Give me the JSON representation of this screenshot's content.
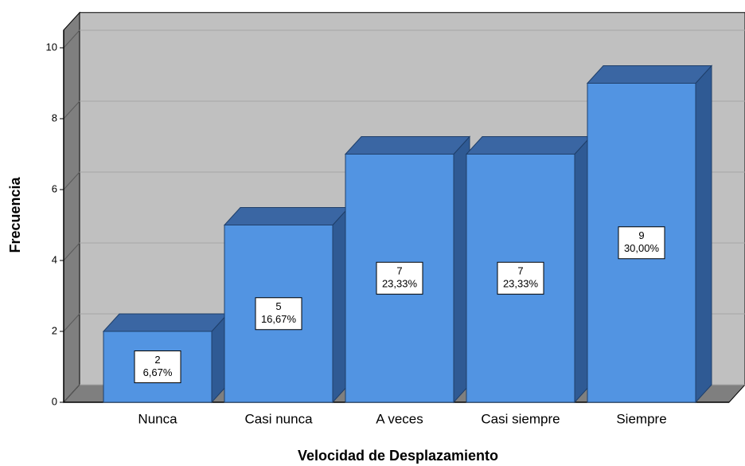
{
  "chart_data": {
    "type": "bar3d",
    "x_label": "Velocidad de Desplazamiento",
    "y_label": "Frecuencia",
    "categories": [
      "Nunca",
      "Casi nunca",
      "A veces",
      "Casi siempre",
      "Siempre"
    ],
    "values": [
      2,
      5,
      7,
      7,
      9
    ],
    "percent": {
      "values": [
        6.67,
        16.67,
        23.33,
        23.33,
        30.0
      ],
      "value_labels": [
        "6,67%",
        "16,67%",
        "23,33%",
        "23,33%",
        "30,00%"
      ]
    },
    "color": "#5294e2",
    "ylim": [
      0,
      10.5
    ],
    "yticks": [
      0,
      2,
      4,
      6,
      8,
      10
    ],
    "grid": true
  }
}
